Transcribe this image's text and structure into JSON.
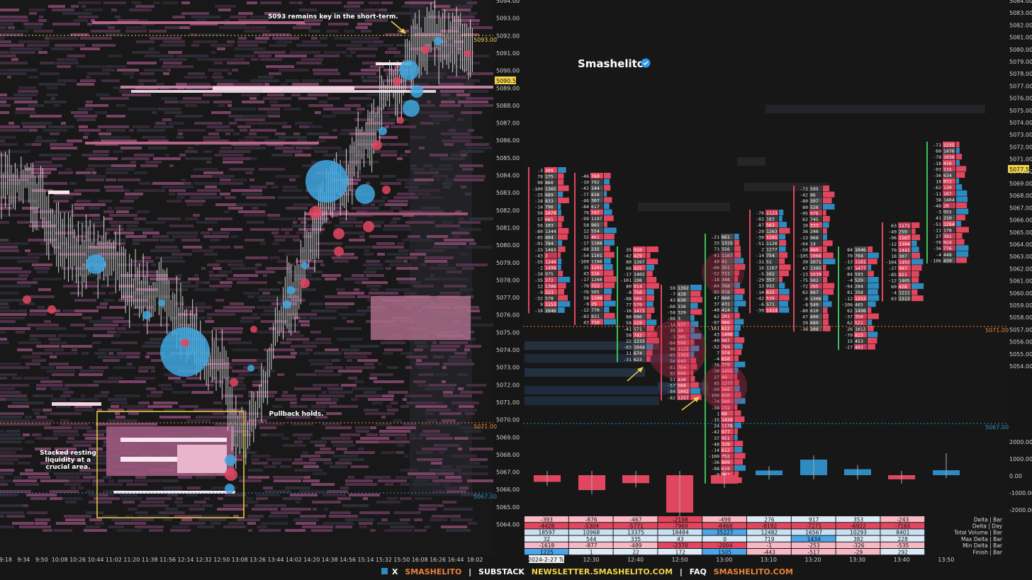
{
  "left_chart": {
    "price_axis": [
      "5094.00",
      "5093.00",
      "5092.00",
      "5091.00",
      "5090.00",
      "5089.00",
      "5088.00",
      "5087.00",
      "5086.00",
      "5085.00",
      "5084.00",
      "5083.00",
      "5082.00",
      "5081.00",
      "5080.00",
      "5079.00",
      "5078.00",
      "5077.00",
      "5076.00",
      "5075.00",
      "5074.00",
      "5073.00",
      "5072.00",
      "5071.00",
      "5070.00",
      "5069.00",
      "5068.00",
      "5067.00",
      "5066.00",
      "5065.00",
      "5064.00"
    ],
    "time_axis": [
      "9:18",
      "9:34",
      "9:50",
      "10:08",
      "10:26",
      "10:44",
      "11:02",
      "11:20",
      "11:38",
      "11:56",
      "12:14",
      "12:32",
      "12:50",
      "13:08",
      "13:26",
      "13:44",
      "14:02",
      "14:20",
      "14:38",
      "14:56",
      "15:14",
      "15:32",
      "15:50",
      "16:08",
      "16:26",
      "16:44",
      "18:02"
    ],
    "levels": {
      "high": "5093.00",
      "mid": "5071.00",
      "low": "5067.00"
    },
    "current_price": "5090.50",
    "annotations": {
      "top": "5093 remains key in the short-term.",
      "pullback": "Pullback holds.",
      "liquidity": "Stacked resting liquidity at a crucial area."
    }
  },
  "right_chart": {
    "brand": "Smashelito",
    "price_axis": [
      "5084.00",
      "5083.00",
      "5082.00",
      "5081.00",
      "5080.00",
      "5079.00",
      "5078.00",
      "5077.00",
      "5076.00",
      "5075.00",
      "5074.00",
      "5073.00",
      "5072.00",
      "5071.00",
      "5070.00",
      "5069.00",
      "5068.00",
      "5067.00",
      "5066.00",
      "5065.00",
      "5064.00",
      "5063.00",
      "5062.00",
      "5061.00",
      "5060.00",
      "5059.00",
      "5058.00",
      "5057.00",
      "5056.00",
      "5055.00",
      "5054.00"
    ],
    "delta_axis": [
      "2000.00",
      "1000.00",
      "0.00",
      "-1000.00",
      "-2000.00"
    ],
    "levels": {
      "mid": "5071.00",
      "low": "5067.00"
    },
    "current_price": "5077.50",
    "time_axis": [
      "2024-2-27 Tu",
      "12:30",
      "12:40",
      "12:50",
      "13:00",
      "13:10",
      "13:20",
      "13:30",
      "13:40",
      "13:50"
    ],
    "table": {
      "row_labels": [
        "Delta | Bar",
        "Delta | Day",
        "Total Volume | Bar",
        "Max Delta | Bar",
        "Min Delta | Bar",
        "Finish | Bar"
      ],
      "rows": [
        [
          "-393",
          "-876",
          "-467",
          "-2198",
          "-499",
          "276",
          "917",
          "353",
          "-243"
        ],
        [
          "-4428",
          "-5304",
          "-5771",
          "-7969",
          "-8468",
          "-8192",
          "-7275",
          "-6922",
          "-7165"
        ],
        [
          "18597",
          "10968",
          "13375",
          "18484",
          "35227",
          "12482",
          "16567",
          "10293",
          "8401"
        ],
        [
          "32",
          "544",
          "335",
          "43",
          "0",
          "719",
          "1434",
          "382",
          "228"
        ],
        [
          "-1618",
          "-877",
          "-489",
          "-2370",
          "-2004",
          "-1",
          "-253",
          "-326",
          "-535"
        ],
        [
          "1225",
          "1",
          "22",
          "172",
          "1505",
          "-443",
          "-517",
          "-29",
          "292"
        ]
      ]
    },
    "delta_bars": [
      -393,
      -876,
      -467,
      -2198,
      -499,
      276,
      917,
      353,
      -243
    ]
  },
  "footer": {
    "x_label": "X",
    "x_handle": "SMASHELITO",
    "substack_label": "SUBSTACK",
    "substack_url": "NEWSLETTER.SMASHELITO.COM",
    "faq_label": "FAQ",
    "faq_url": "SMASHELITO.COM",
    "sep": "|"
  },
  "colors": {
    "bg": "#161616",
    "red": "#e0475f",
    "blue": "#2e8bc0",
    "yellow": "#f0d34a",
    "orange": "#e8823a",
    "pink": "#c66b94",
    "lightpink": "#f4c7d6"
  }
}
